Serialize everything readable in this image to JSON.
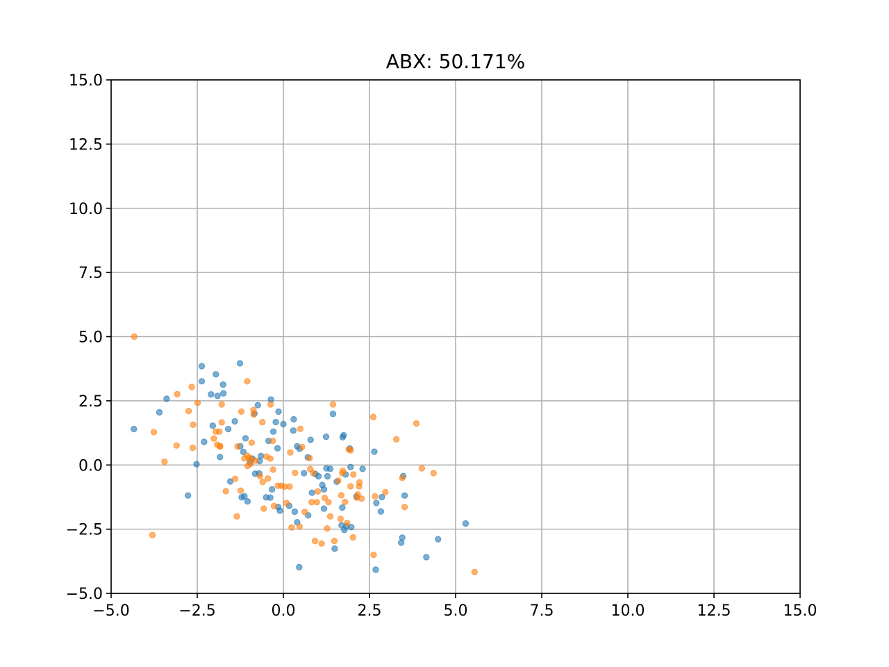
{
  "chart_data": {
    "type": "scatter",
    "title": "ABX: 50.171%",
    "xlabel": "",
    "ylabel": "",
    "xlim": [
      -5.0,
      15.0
    ],
    "ylim": [
      -5.0,
      15.0
    ],
    "xticks": [
      "−5.0",
      "−2.5",
      "0.0",
      "2.5",
      "5.0",
      "7.5",
      "10.0",
      "12.5",
      "15.0"
    ],
    "yticks": [
      "−5.0",
      "−2.5",
      "0.0",
      "2.5",
      "5.0",
      "7.5",
      "10.0",
      "12.5",
      "15.0"
    ],
    "xtick_values": [
      -5.0,
      -2.5,
      0.0,
      2.5,
      5.0,
      7.5,
      10.0,
      12.5,
      15.0
    ],
    "ytick_values": [
      -5.0,
      -2.5,
      0.0,
      2.5,
      5.0,
      7.5,
      10.0,
      12.5,
      15.0
    ],
    "grid": true,
    "series": [
      {
        "color": "#1f77b4",
        "points": [
          [
            -4.34,
            1.4
          ],
          [
            -3.6,
            2.05
          ],
          [
            -3.39,
            2.58
          ],
          [
            -2.77,
            -1.19
          ],
          [
            -2.52,
            0.03
          ],
          [
            -2.37,
            3.85
          ],
          [
            -2.37,
            3.26
          ],
          [
            -2.3,
            0.9
          ],
          [
            -2.1,
            2.75
          ],
          [
            -2.05,
            1.53
          ],
          [
            -1.96,
            3.53
          ],
          [
            -1.91,
            2.69
          ],
          [
            -1.84,
            0.31
          ],
          [
            -1.75,
            3.13
          ],
          [
            -1.74,
            2.79
          ],
          [
            -1.6,
            1.4
          ],
          [
            -1.54,
            -0.64
          ],
          [
            -1.41,
            1.7
          ],
          [
            -1.26,
            3.96
          ],
          [
            -1.25,
            0.73
          ],
          [
            -1.21,
            -1.26
          ],
          [
            -1.16,
            0.51
          ],
          [
            -1.13,
            -1.22
          ],
          [
            -1.1,
            1.04
          ],
          [
            -1.04,
            -1.42
          ],
          [
            -0.97,
            0.12
          ],
          [
            -0.9,
            0.25
          ],
          [
            -0.84,
            2.0
          ],
          [
            -0.82,
            -0.34
          ],
          [
            -0.74,
            2.33
          ],
          [
            -0.7,
            -0.33
          ],
          [
            -0.69,
            0.15
          ],
          [
            -0.65,
            0.35
          ],
          [
            -0.5,
            -1.26
          ],
          [
            -0.43,
            0.94
          ],
          [
            -0.38,
            -1.27
          ],
          [
            -0.36,
            2.55
          ],
          [
            -0.33,
            -0.95
          ],
          [
            -0.29,
            1.3
          ],
          [
            -0.22,
            1.67
          ],
          [
            -0.17,
            0.65
          ],
          [
            -0.14,
            2.08
          ],
          [
            -0.15,
            -1.64
          ],
          [
            -0.1,
            -1.78
          ],
          [
            0.0,
            1.59
          ],
          [
            0.17,
            -1.59
          ],
          [
            0.3,
            1.78
          ],
          [
            0.29,
            1.34
          ],
          [
            0.33,
            -1.82
          ],
          [
            0.4,
            -2.23
          ],
          [
            0.4,
            0.73
          ],
          [
            0.46,
            -3.98
          ],
          [
            0.47,
            0.63
          ],
          [
            0.6,
            -0.32
          ],
          [
            0.71,
            0.3
          ],
          [
            0.72,
            -1.96
          ],
          [
            0.79,
            0.98
          ],
          [
            0.83,
            -1.08
          ],
          [
            0.93,
            -0.35
          ],
          [
            1.02,
            -0.44
          ],
          [
            1.13,
            -0.78
          ],
          [
            1.18,
            -1.7
          ],
          [
            1.18,
            -0.95
          ],
          [
            1.24,
            1.1
          ],
          [
            1.25,
            -0.13
          ],
          [
            1.28,
            -0.44
          ],
          [
            1.36,
            -0.15
          ],
          [
            1.44,
            1.99
          ],
          [
            1.49,
            -3.26
          ],
          [
            1.55,
            -0.65
          ],
          [
            1.69,
            -2.35
          ],
          [
            1.72,
            1.08
          ],
          [
            1.75,
            1.16
          ],
          [
            1.81,
            -0.37
          ],
          [
            1.77,
            -2.53
          ],
          [
            1.83,
            -2.39
          ],
          [
            1.71,
            -1.66
          ],
          [
            1.95,
            -0.08
          ],
          [
            1.97,
            -2.42
          ],
          [
            2.12,
            -1.23
          ],
          [
            2.3,
            -0.15
          ],
          [
            2.64,
            0.52
          ],
          [
            2.68,
            -4.08
          ],
          [
            2.7,
            -1.48
          ],
          [
            2.83,
            -1.81
          ],
          [
            2.86,
            -1.25
          ],
          [
            3.42,
            -3.03
          ],
          [
            3.45,
            -2.83
          ],
          [
            3.48,
            -0.43
          ],
          [
            3.52,
            -1.19
          ],
          [
            4.15,
            -3.59
          ],
          [
            4.49,
            -2.89
          ],
          [
            5.29,
            -2.28
          ],
          [
            1.93,
            0.64
          ]
        ]
      },
      {
        "color": "#ff7f0e",
        "points": [
          [
            -4.33,
            5.0
          ],
          [
            -3.8,
            -2.73
          ],
          [
            -3.76,
            1.28
          ],
          [
            -3.45,
            0.13
          ],
          [
            -3.1,
            0.76
          ],
          [
            -3.08,
            2.76
          ],
          [
            -2.75,
            2.1
          ],
          [
            -2.66,
            3.04
          ],
          [
            -2.63,
            0.67
          ],
          [
            -2.62,
            1.57
          ],
          [
            -2.49,
            2.42
          ],
          [
            -2.02,
            1.03
          ],
          [
            -1.96,
            1.3
          ],
          [
            -1.92,
            0.79
          ],
          [
            -1.86,
            1.3
          ],
          [
            -1.84,
            0.72
          ],
          [
            -1.79,
            2.36
          ],
          [
            -1.79,
            1.66
          ],
          [
            -1.84,
            0.74
          ],
          [
            -1.67,
            -1.02
          ],
          [
            -1.4,
            -0.54
          ],
          [
            -1.33,
            0.72
          ],
          [
            -1.35,
            -2.0
          ],
          [
            -1.24,
            -1.0
          ],
          [
            -1.22,
            2.08
          ],
          [
            -1.13,
            0.26
          ],
          [
            -1.05,
            3.26
          ],
          [
            -1.05,
            0.36
          ],
          [
            -1.04,
            -0.04
          ],
          [
            -0.99,
            0.28
          ],
          [
            -0.95,
            0.05
          ],
          [
            -0.94,
            0.22
          ],
          [
            -0.92,
            0.87
          ],
          [
            -0.87,
            2.14
          ],
          [
            -0.86,
            1.97
          ],
          [
            -0.8,
            0.17
          ],
          [
            -0.68,
            -0.43
          ],
          [
            -0.61,
            1.67
          ],
          [
            -0.6,
            -0.66
          ],
          [
            -0.57,
            -1.7
          ],
          [
            -0.49,
            0.33
          ],
          [
            -0.45,
            -0.53
          ],
          [
            -0.38,
            0.25
          ],
          [
            -0.37,
            2.36
          ],
          [
            -0.31,
            0.94
          ],
          [
            -0.3,
            -0.18
          ],
          [
            -0.27,
            -1.6
          ],
          [
            -0.16,
            -0.81
          ],
          [
            -0.06,
            -0.81
          ],
          [
            0.04,
            -0.84
          ],
          [
            0.09,
            -1.48
          ],
          [
            0.18,
            -0.84
          ],
          [
            0.2,
            0.49
          ],
          [
            0.24,
            -2.43
          ],
          [
            0.34,
            -0.31
          ],
          [
            0.47,
            -2.4
          ],
          [
            0.49,
            1.41
          ],
          [
            0.54,
            0.7
          ],
          [
            0.62,
            -1.83
          ],
          [
            0.76,
            0.27
          ],
          [
            0.78,
            -0.16
          ],
          [
            0.82,
            -1.45
          ],
          [
            0.87,
            -0.32
          ],
          [
            0.92,
            -2.96
          ],
          [
            1.0,
            -1.03
          ],
          [
            0.97,
            -1.45
          ],
          [
            1.11,
            -3.06
          ],
          [
            1.2,
            -1.28
          ],
          [
            1.27,
            -2.47
          ],
          [
            1.31,
            -1.45
          ],
          [
            1.36,
            -2.0
          ],
          [
            1.44,
            2.36
          ],
          [
            1.48,
            -2.96
          ],
          [
            1.59,
            -0.61
          ],
          [
            1.66,
            -2.1
          ],
          [
            1.68,
            -1.18
          ],
          [
            1.71,
            -0.32
          ],
          [
            1.73,
            -0.23
          ],
          [
            1.79,
            -1.44
          ],
          [
            1.85,
            -2.26
          ],
          [
            1.9,
            0.61
          ],
          [
            1.95,
            0.57
          ],
          [
            1.95,
            -0.83
          ],
          [
            2.03,
            -0.37
          ],
          [
            2.02,
            -2.82
          ],
          [
            2.13,
            -1.27
          ],
          [
            2.16,
            -1.15
          ],
          [
            2.2,
            -0.83
          ],
          [
            2.21,
            -0.68
          ],
          [
            2.27,
            -1.31
          ],
          [
            2.61,
            1.87
          ],
          [
            2.62,
            -3.5
          ],
          [
            2.66,
            -1.22
          ],
          [
            2.96,
            -1.06
          ],
          [
            3.28,
            1.0
          ],
          [
            3.45,
            -0.5
          ],
          [
            3.52,
            -1.64
          ],
          [
            3.86,
            1.62
          ],
          [
            4.02,
            -0.13
          ],
          [
            4.36,
            -0.32
          ],
          [
            5.55,
            -4.17
          ]
        ]
      }
    ]
  }
}
